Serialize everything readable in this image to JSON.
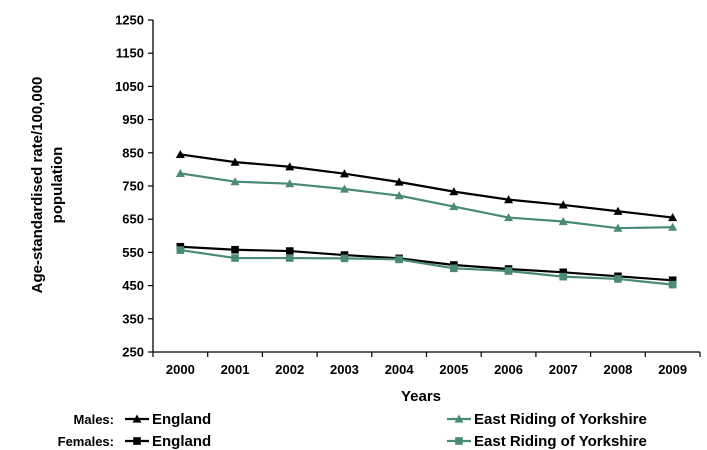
{
  "chart_data": {
    "type": "line",
    "title": "",
    "xlabel": "Years",
    "ylabel_line1": "Age-standardised rate/100,000",
    "ylabel_line2": "population",
    "x": [
      "2000",
      "2001",
      "2002",
      "2003",
      "2004",
      "2005",
      "2006",
      "2007",
      "2008",
      "2009"
    ],
    "yticks": [
      250,
      350,
      450,
      550,
      650,
      750,
      850,
      950,
      1050,
      1150,
      1250
    ],
    "ylim": [
      250,
      1250
    ],
    "grid": false,
    "legend": {
      "placement": "bottom",
      "groups": [
        {
          "label": "Males:",
          "entries": [
            "England",
            "East Riding of Yorkshire"
          ]
        },
        {
          "label": "Females:",
          "entries": [
            "England",
            "East Riding of Yorkshire"
          ]
        }
      ]
    },
    "colors": {
      "england": "#000000",
      "east_riding": "#4a8a76"
    },
    "series": [
      {
        "name": "England",
        "group": "Males",
        "marker": "triangle",
        "color": "#000000",
        "values": [
          845,
          822,
          808,
          787,
          762,
          733,
          709,
          693,
          674,
          655
        ]
      },
      {
        "name": "East Riding of Yorkshire",
        "group": "Males",
        "marker": "triangle",
        "color": "#4a8a76",
        "values": [
          788,
          763,
          757,
          741,
          721,
          688,
          655,
          643,
          623,
          626
        ]
      },
      {
        "name": "England",
        "group": "Females",
        "marker": "square",
        "color": "#000000",
        "values": [
          567,
          558,
          554,
          542,
          532,
          512,
          500,
          490,
          478,
          466
        ]
      },
      {
        "name": "East Riding of Yorkshire",
        "group": "Females",
        "marker": "square",
        "color": "#4a8a76",
        "values": [
          557,
          533,
          533,
          532,
          529,
          502,
          494,
          477,
          470,
          453
        ]
      }
    ]
  }
}
